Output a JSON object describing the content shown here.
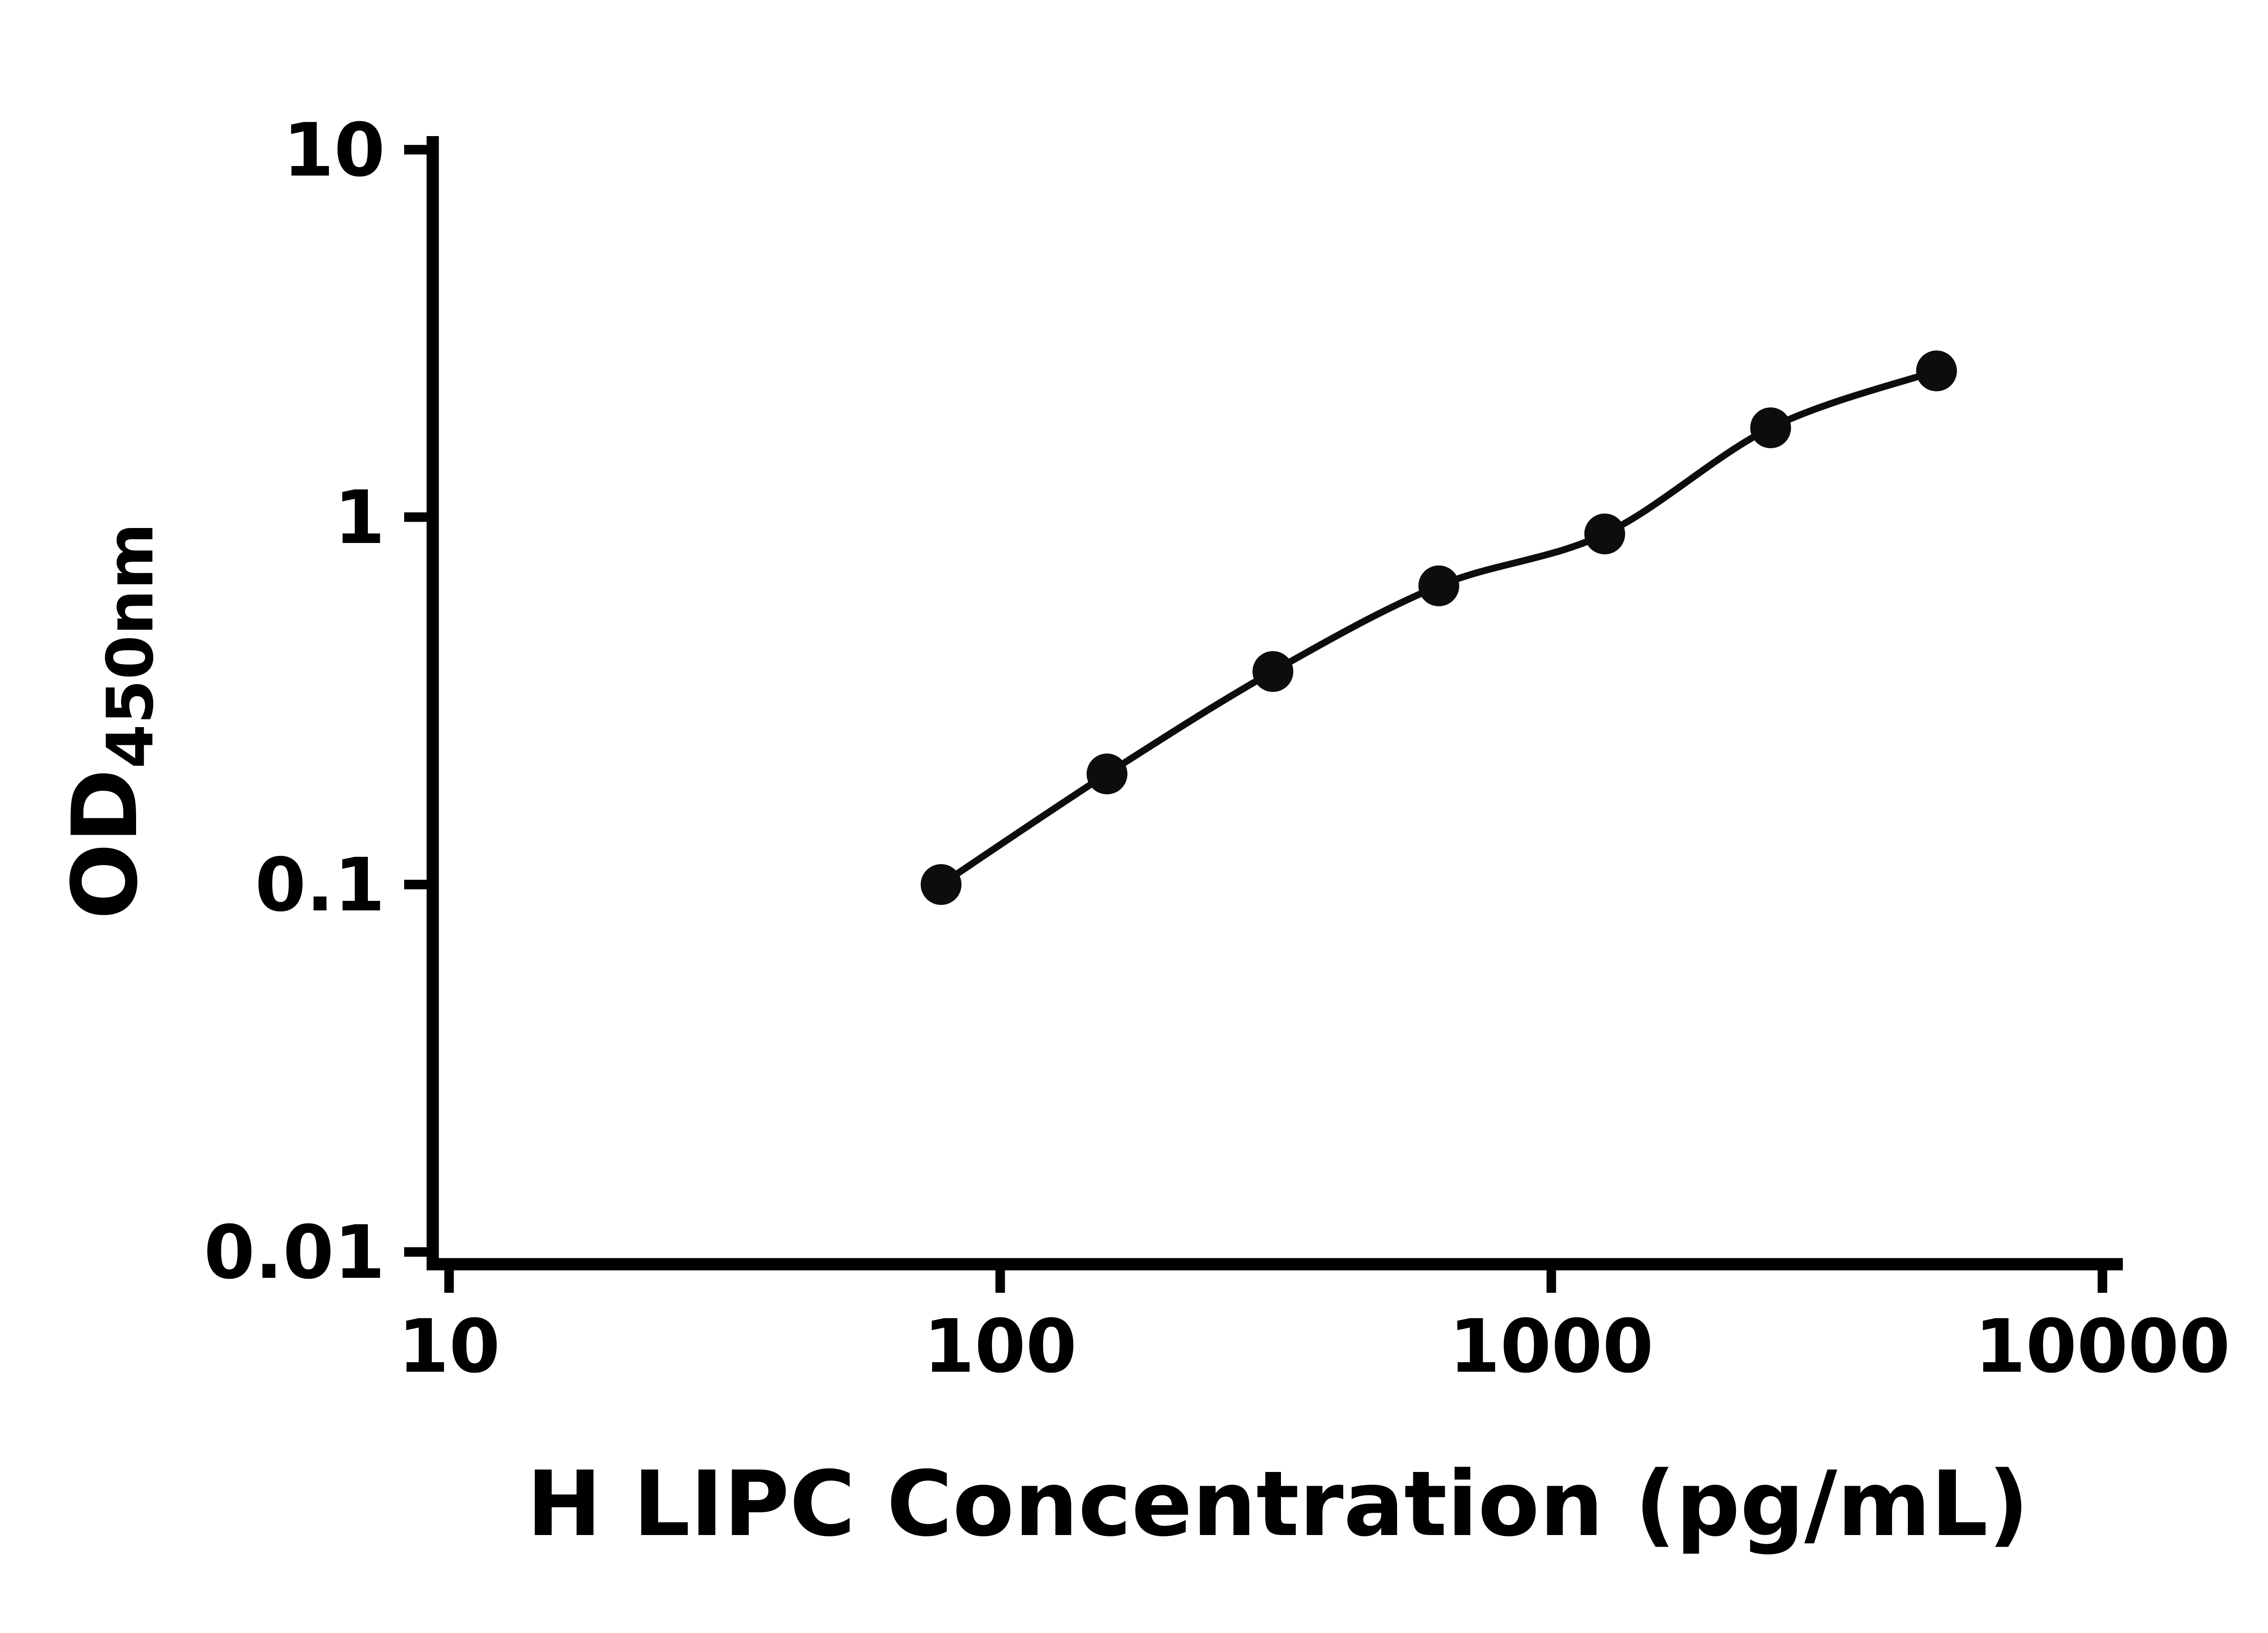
{
  "chart_data": {
    "type": "scatter",
    "title": "",
    "xlabel": "H LIPC Concentration (pg/mL)",
    "ylabel_main": "OD",
    "ylabel_sub": "450nm",
    "x_scale": "log10",
    "y_scale": "log10",
    "xlim": [
      10,
      10000
    ],
    "ylim": [
      0.01,
      10
    ],
    "x_ticks": [
      10,
      100,
      1000,
      10000
    ],
    "y_ticks": [
      10,
      1,
      0.1,
      0.01
    ],
    "grid": false,
    "legend": "none",
    "marker_color": "#0d0d0d",
    "line_color": "#0d0d0d",
    "axis_color": "#000000",
    "points": [
      {
        "x": 78.125,
        "y": 0.1
      },
      {
        "x": 156.25,
        "y": 0.2
      },
      {
        "x": 312.5,
        "y": 0.38
      },
      {
        "x": 625,
        "y": 0.65
      },
      {
        "x": 1250,
        "y": 0.9
      },
      {
        "x": 2500,
        "y": 1.75
      },
      {
        "x": 5000,
        "y": 2.5
      }
    ]
  }
}
